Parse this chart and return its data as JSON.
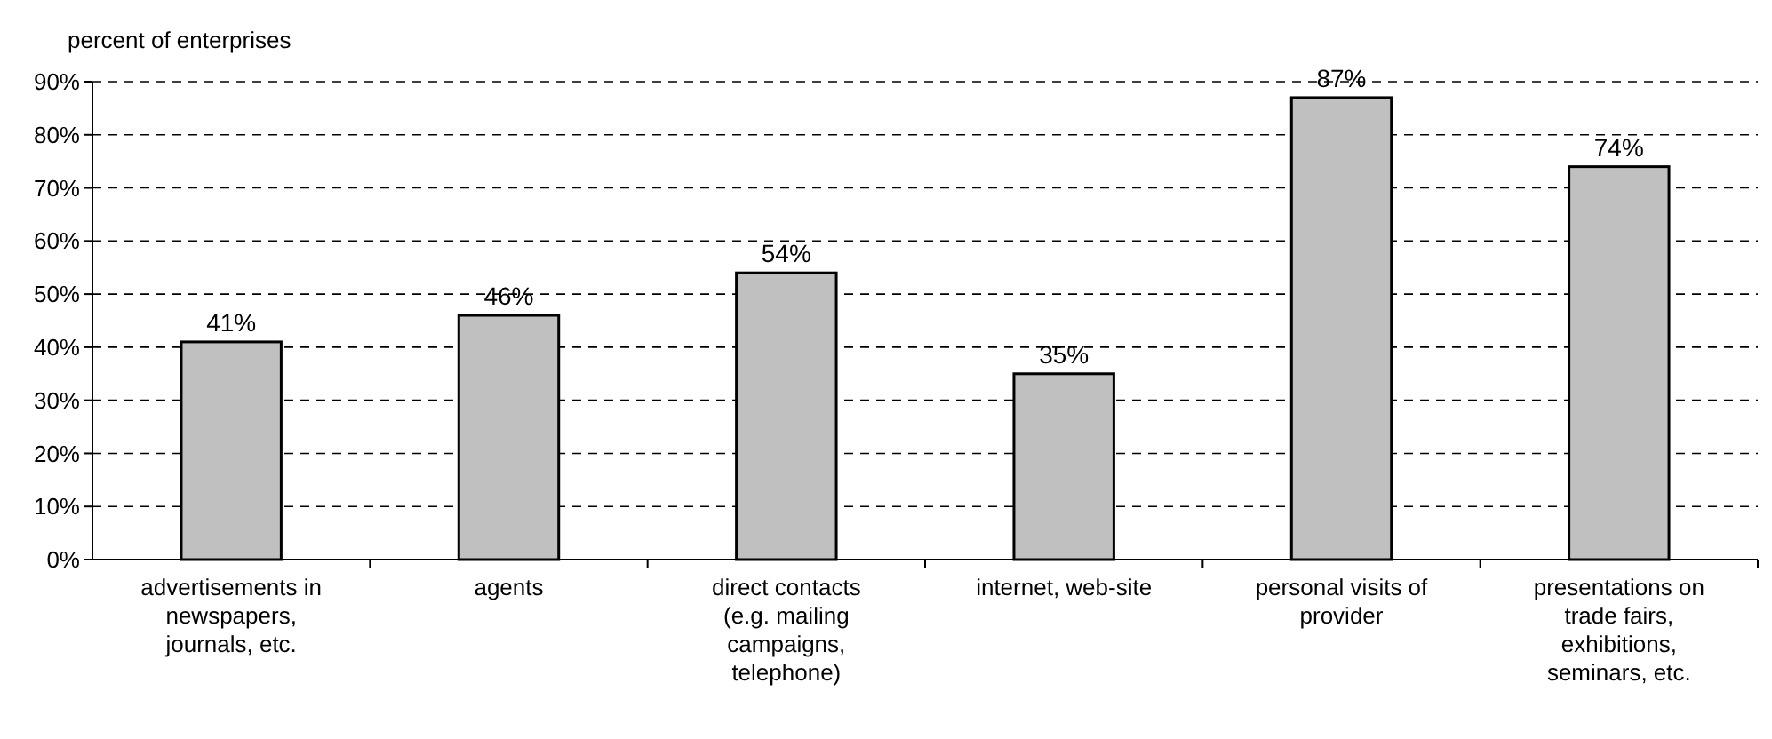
{
  "chart_data": {
    "type": "bar",
    "ylabel": "percent of enterprises",
    "categories": [
      "advertisements in newspapers, journals, etc.",
      "agents",
      "direct contacts (e.g. mailing campaigns, telephone)",
      "internet, web-site",
      "personal visits of provider",
      "presentations on trade fairs, exhibitions, seminars, etc."
    ],
    "values": [
      41,
      46,
      54,
      35,
      87,
      74
    ],
    "color": "#c0c0c0",
    "value_labels": [
      "41%",
      "46%",
      "54%",
      "35%",
      "87%",
      "74%"
    ],
    "ylim": [
      0,
      90
    ],
    "yticks": [
      {
        "value": 0,
        "label": "0%"
      },
      {
        "value": 10,
        "label": "10%"
      },
      {
        "value": 20,
        "label": "20%"
      },
      {
        "value": 30,
        "label": "30%"
      },
      {
        "value": 40,
        "label": "40%"
      },
      {
        "value": 50,
        "label": "50%"
      },
      {
        "value": 60,
        "label": "60%"
      },
      {
        "value": 70,
        "label": "70%"
      },
      {
        "value": 80,
        "label": "80%"
      },
      {
        "value": 90,
        "label": "90%"
      }
    ],
    "grid": "y"
  }
}
